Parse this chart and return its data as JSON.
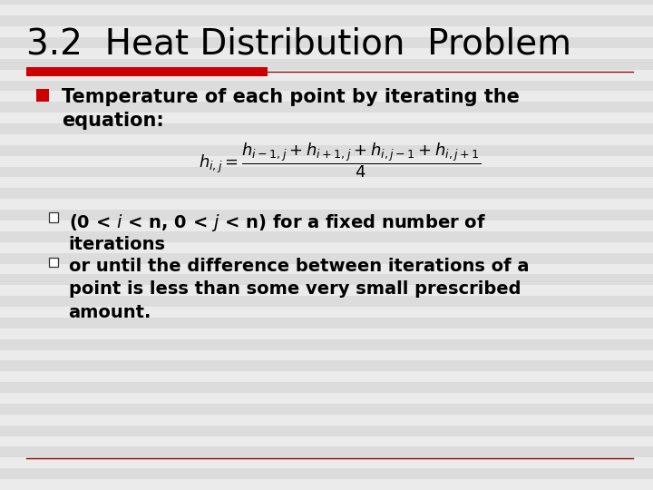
{
  "title": "3.2  Heat Distribution  Problem",
  "title_fontsize": 28,
  "title_color": "#000000",
  "title_font": "DejaVu Sans",
  "accent_bar_color": "#cc0000",
  "bg_color": "#dcdcdc",
  "stripe_color": "#ffffff",
  "bullet1_text_line1": "Temperature of each point by iterating the",
  "bullet1_text_line2": "equation:",
  "bullet_fontsize": 15,
  "formula": "$h_{i,j} = \\dfrac{h_{i-1,j} + h_{i+1,j} + h_{i,j-1} + h_{i,j+1}}{4}$",
  "formula_fontsize": 13,
  "sub1_line1": "(0 < $i$ < n, 0 < $j$ < n) for a fixed number of",
  "sub1_line2": "iterations",
  "sub2_line1": "or until the difference between iterations of a",
  "sub2_line2": "point is less than some very small prescribed",
  "sub2_line3": "amount.",
  "sub_fontsize": 14
}
